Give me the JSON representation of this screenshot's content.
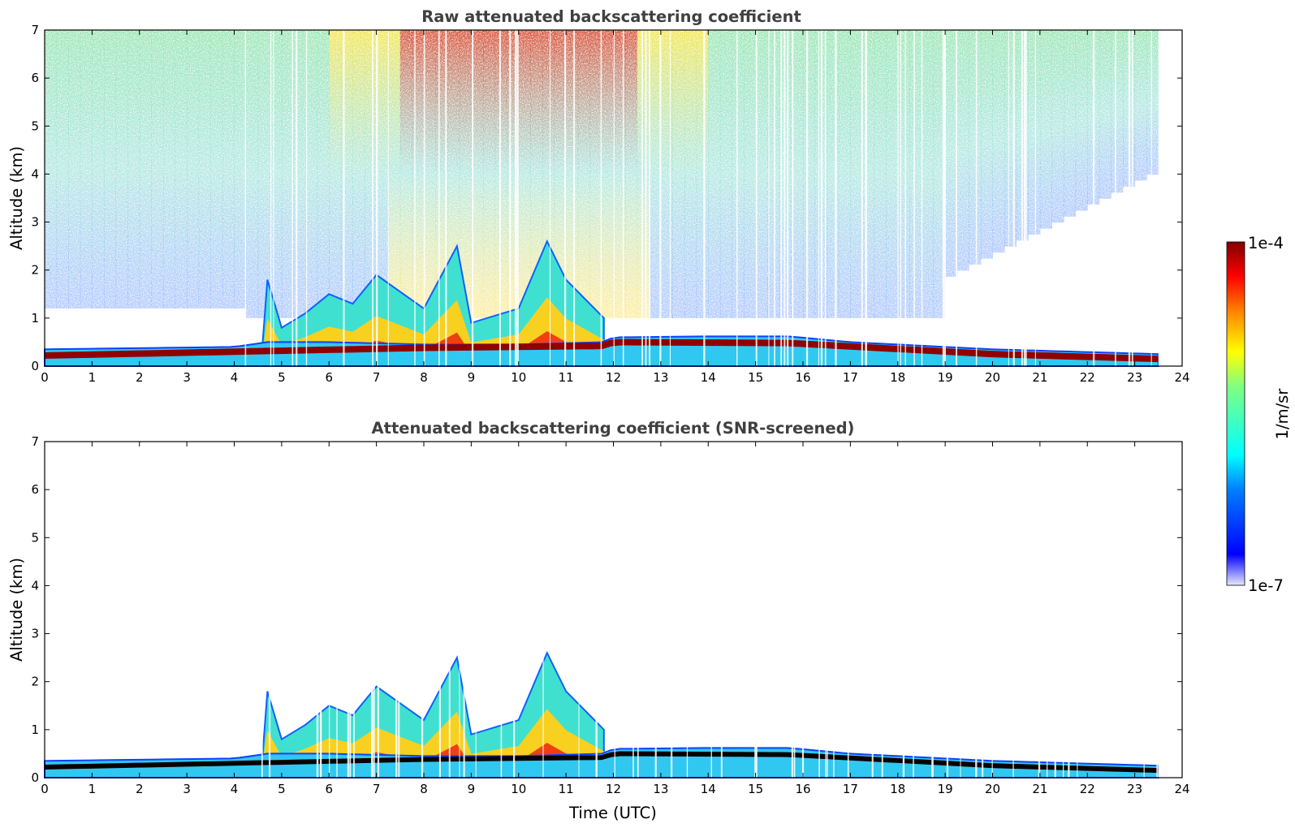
{
  "chart_data": [
    {
      "type": "heatmap",
      "title": "Raw attenuated backscattering coefficient",
      "xlabel": "",
      "ylabel": "Altitude (km)",
      "xlim": [
        0,
        24
      ],
      "ylim": [
        0,
        7
      ],
      "xticks": [
        "0",
        "1",
        "2",
        "3",
        "4",
        "5",
        "6",
        "7",
        "8",
        "9",
        "10",
        "11",
        "12",
        "13",
        "14",
        "15",
        "16",
        "17",
        "18",
        "19",
        "20",
        "21",
        "22",
        "23",
        "24"
      ],
      "yticks": [
        "0",
        "1",
        "2",
        "3",
        "4",
        "5",
        "6",
        "7"
      ],
      "data_end_hour": 23.5,
      "layers": [
        {
          "feature": "surface layer top",
          "hours": [
            0,
            4,
            4.7,
            6,
            8,
            10,
            11.8,
            12,
            14,
            15.7,
            17,
            20,
            23.5
          ],
          "altitude_km": [
            0.35,
            0.4,
            0.5,
            0.5,
            0.45,
            0.45,
            0.5,
            0.6,
            0.62,
            0.62,
            0.5,
            0.35,
            0.25
          ]
        },
        {
          "feature": "cloud base (dark band)",
          "hours": [
            0,
            4,
            8,
            11.8,
            12,
            15.7,
            20,
            23.5
          ],
          "altitude_km": [
            0.22,
            0.3,
            0.38,
            0.42,
            0.5,
            0.48,
            0.25,
            0.15
          ]
        },
        {
          "feature": "aerosol plume top",
          "hours": [
            4.6,
            4.7,
            5,
            5.5,
            6,
            6.5,
            7,
            8,
            8.7,
            9,
            10,
            10.6,
            11,
            11.8
          ],
          "altitude_km": [
            0.5,
            1.8,
            0.8,
            1.1,
            1.5,
            1.3,
            1.9,
            1.2,
            2.5,
            0.9,
            1.2,
            2.6,
            1.8,
            1.0
          ]
        }
      ],
      "noise_region": {
        "hours": [
          0,
          23.5
        ],
        "altitude_km": [
          1.0,
          7.0
        ],
        "peak_hours": [
          7,
          13
        ]
      }
    },
    {
      "type": "heatmap",
      "title": "Attenuated backscattering coefficient (SNR-screened)",
      "xlabel": "Time (UTC)",
      "ylabel": "Altitude (km)",
      "xlim": [
        0,
        24
      ],
      "ylim": [
        0,
        7
      ],
      "xticks": [
        "0",
        "1",
        "2",
        "3",
        "4",
        "5",
        "6",
        "7",
        "8",
        "9",
        "10",
        "11",
        "12",
        "13",
        "14",
        "15",
        "16",
        "17",
        "18",
        "19",
        "20",
        "21",
        "22",
        "23",
        "24"
      ],
      "yticks": [
        "0",
        "1",
        "2",
        "3",
        "4",
        "5",
        "6",
        "7"
      ],
      "data_end_hour": 23.5,
      "layers": [
        {
          "feature": "surface layer top",
          "hours": [
            0,
            4,
            4.7,
            6,
            8,
            10,
            11.8,
            12,
            14,
            15.7,
            17,
            20,
            23.5
          ],
          "altitude_km": [
            0.35,
            0.4,
            0.5,
            0.5,
            0.45,
            0.45,
            0.5,
            0.6,
            0.62,
            0.62,
            0.5,
            0.35,
            0.25
          ]
        },
        {
          "feature": "cloud base (black band)",
          "hours": [
            0,
            4,
            8,
            11.8,
            12,
            15.7,
            20,
            23.5
          ],
          "altitude_km": [
            0.22,
            0.3,
            0.38,
            0.42,
            0.5,
            0.48,
            0.25,
            0.15
          ]
        },
        {
          "feature": "aerosol plume top",
          "hours": [
            4.6,
            4.7,
            5,
            5.5,
            6,
            6.5,
            7,
            8,
            8.7,
            9,
            10,
            10.6,
            11,
            11.8
          ],
          "altitude_km": [
            0.5,
            1.8,
            0.8,
            1.1,
            1.5,
            1.3,
            1.9,
            1.2,
            2.5,
            0.9,
            1.2,
            2.6,
            1.8,
            1.0
          ]
        }
      ]
    }
  ],
  "colorbar": {
    "max_label": "1e-4",
    "min_label": "1e-7",
    "label": "1/m/sr",
    "colormap": "jet",
    "scale": "log"
  },
  "colors": {
    "jet_dark_blue": "#00008f",
    "jet_blue": "#0000ff",
    "jet_cyan": "#00ffff",
    "jet_yellow": "#ffff00",
    "jet_red": "#ff0000",
    "jet_dark_red": "#800000",
    "title_gray": "#404040",
    "cloud_black": "#0a0000"
  }
}
